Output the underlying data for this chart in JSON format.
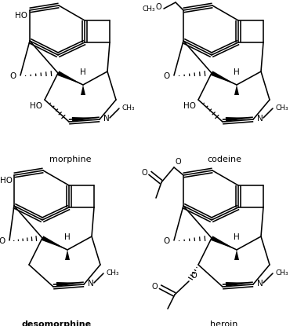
{
  "morphine_label": "morphine",
  "codeine_label": "codeine",
  "desomorphine_label": "desomorphine",
  "heroin_label": "heroin",
  "bg": "#ffffff"
}
